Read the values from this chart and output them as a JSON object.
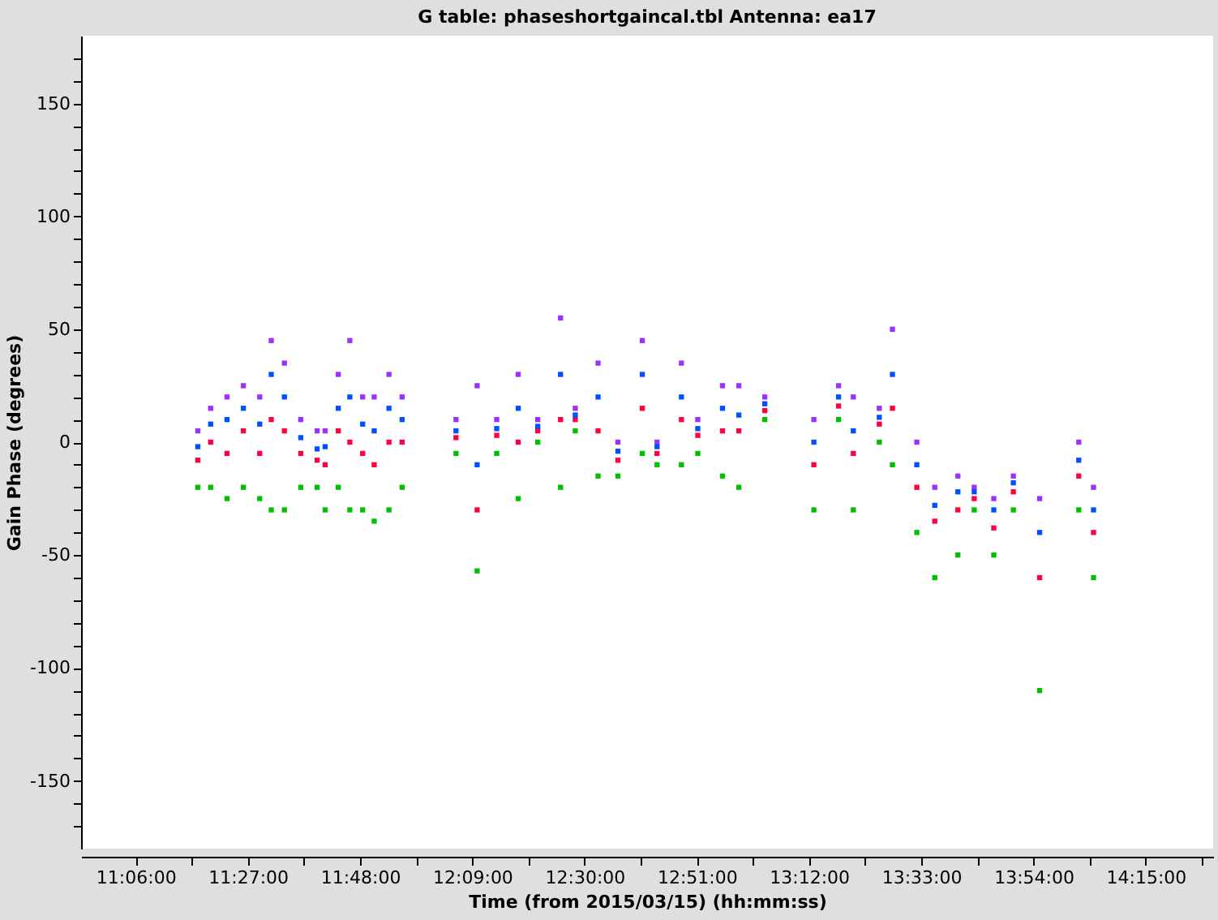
{
  "chart_data": {
    "type": "scatter",
    "title": "G table: phaseshortgaincal.tbl   Antenna: ea17",
    "xlabel": "Time (from 2015/03/15) (hh:mm:ss)",
    "ylabel": "Gain Phase (degrees)",
    "marker": "square",
    "grid": false,
    "x": [
      11.294,
      11.334,
      11.385,
      11.436,
      11.487,
      11.523,
      11.564,
      11.615,
      11.666,
      11.691,
      11.732,
      11.768,
      11.808,
      11.844,
      11.89,
      11.931,
      12.099,
      12.165,
      12.226,
      12.293,
      12.354,
      12.425,
      12.471,
      12.542,
      12.604,
      12.68,
      12.726,
      12.802,
      12.853,
      12.93,
      12.981,
      13.062,
      13.215,
      13.292,
      13.338,
      13.419,
      13.46,
      13.536,
      13.592,
      13.664,
      13.715,
      13.776,
      13.837,
      13.919,
      14.041,
      14.087
    ],
    "series": [
      {
        "color": "#9b30ff",
        "values": [
          5,
          15,
          20,
          25,
          20,
          45,
          35,
          10,
          5,
          5,
          30,
          45,
          20,
          20,
          30,
          20,
          10,
          25,
          10,
          30,
          10,
          55,
          15,
          35,
          0,
          45,
          0,
          35,
          10,
          25,
          25,
          20,
          10,
          25,
          20,
          15,
          50,
          0,
          -20,
          -15,
          -20,
          -25,
          -15,
          -25,
          0,
          -20
        ]
      },
      {
        "color": "#00c000",
        "values": [
          -20,
          -20,
          -25,
          -20,
          -25,
          -30,
          -30,
          -20,
          -20,
          -30,
          -20,
          -30,
          -30,
          -35,
          -30,
          -20,
          -5,
          -57,
          -5,
          -25,
          0,
          -20,
          5,
          -15,
          -15,
          -5,
          -10,
          -10,
          -5,
          -15,
          -20,
          10,
          -30,
          10,
          -30,
          0,
          -10,
          -40,
          -60,
          -50,
          -30,
          -50,
          -30,
          -110,
          -30,
          -60
        ]
      },
      {
        "color": "#ff0040",
        "values": [
          -8,
          0,
          -5,
          5,
          -5,
          10,
          5,
          -5,
          -8,
          -10,
          5,
          0,
          -5,
          -10,
          0,
          0,
          2,
          -30,
          3,
          0,
          5,
          10,
          10,
          5,
          -8,
          15,
          -5,
          10,
          3,
          5,
          5,
          14,
          -10,
          16,
          -5,
          8,
          15,
          -20,
          -35,
          -30,
          -25,
          -38,
          -22,
          -60,
          -15,
          -40
        ]
      },
      {
        "color": "#0050ff",
        "values": [
          -2,
          8,
          10,
          15,
          8,
          30,
          20,
          2,
          -3,
          -2,
          15,
          20,
          8,
          5,
          15,
          10,
          5,
          -10,
          6,
          15,
          7,
          30,
          12,
          20,
          -4,
          30,
          -2,
          20,
          6,
          15,
          12,
          17,
          0,
          20,
          5,
          11,
          30,
          -10,
          -28,
          -22,
          -22,
          -30,
          -18,
          -40,
          -8,
          -30
        ]
      }
    ],
    "xlim": [
      10.93,
      14.46
    ],
    "xticks": [
      {
        "value": 11.1,
        "label": "11:06:00"
      },
      {
        "value": 11.275,
        "label": null
      },
      {
        "value": 11.45,
        "label": "11:27:00"
      },
      {
        "value": 11.625,
        "label": null
      },
      {
        "value": 11.8,
        "label": "11:48:00"
      },
      {
        "value": 11.975,
        "label": null
      },
      {
        "value": 12.15,
        "label": "12:09:00"
      },
      {
        "value": 12.325,
        "label": null
      },
      {
        "value": 12.5,
        "label": "12:30:00"
      },
      {
        "value": 12.675,
        "label": null
      },
      {
        "value": 12.85,
        "label": "12:51:00"
      },
      {
        "value": 13.025,
        "label": null
      },
      {
        "value": 13.2,
        "label": "13:12:00"
      },
      {
        "value": 13.375,
        "label": null
      },
      {
        "value": 13.55,
        "label": "13:33:00"
      },
      {
        "value": 13.725,
        "label": null
      },
      {
        "value": 13.9,
        "label": "13:54:00"
      },
      {
        "value": 14.075,
        "label": null
      },
      {
        "value": 14.25,
        "label": "14:15:00"
      },
      {
        "value": 14.425,
        "label": null
      }
    ],
    "ylim": [
      -180,
      180
    ],
    "yticks": [
      -150,
      -100,
      -50,
      0,
      50,
      100,
      150,
      {
        "value": -170,
        "label": null
      },
      {
        "value": -160,
        "label": null
      },
      {
        "value": -140,
        "label": null
      },
      {
        "value": -130,
        "label": null
      },
      {
        "value": -120,
        "label": null
      },
      {
        "value": -110,
        "label": null
      },
      {
        "value": -90,
        "label": null
      },
      {
        "value": -80,
        "label": null
      },
      {
        "value": -70,
        "label": null
      },
      {
        "value": -60,
        "label": null
      },
      {
        "value": -40,
        "label": null
      },
      {
        "value": -30,
        "label": null
      },
      {
        "value": -20,
        "label": null
      },
      {
        "value": -10,
        "label": null
      },
      {
        "value": 10,
        "label": null
      },
      {
        "value": 20,
        "label": null
      },
      {
        "value": 30,
        "label": null
      },
      {
        "value": 40,
        "label": null
      },
      {
        "value": 60,
        "label": null
      },
      {
        "value": 70,
        "label": null
      },
      {
        "value": 80,
        "label": null
      },
      {
        "value": 90,
        "label": null
      },
      {
        "value": 110,
        "label": null
      },
      {
        "value": 120,
        "label": null
      },
      {
        "value": 130,
        "label": null
      },
      {
        "value": 140,
        "label": null
      },
      {
        "value": 160,
        "label": null
      },
      {
        "value": 170,
        "label": null
      }
    ]
  }
}
